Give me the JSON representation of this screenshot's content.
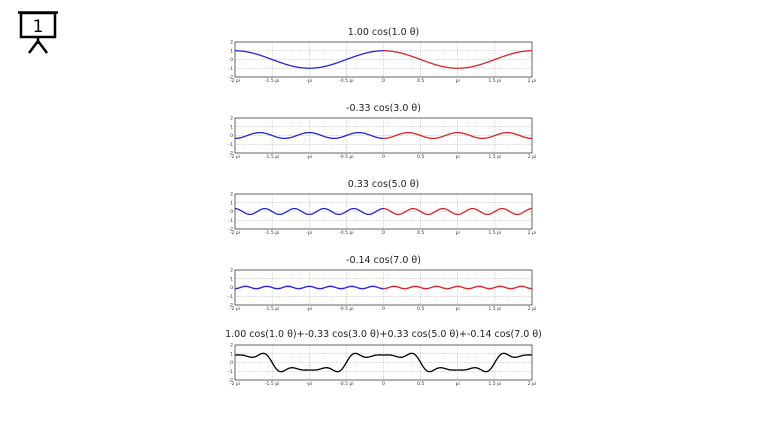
{
  "presentation": {
    "slide_number": "1"
  },
  "chart_data": [
    {
      "type": "line",
      "title": "1.00 cos(1.0 θ)",
      "amplitude": 1.0,
      "frequency": 1.0,
      "x_range": [
        -6.2832,
        6.2832
      ],
      "ylim": [
        -2,
        2
      ],
      "grid": true,
      "series": [
        {
          "color": "#2323dc",
          "x_range": [
            -6.2832,
            0
          ]
        },
        {
          "color": "#dc2323",
          "x_range": [
            0,
            6.2832
          ]
        }
      ],
      "x_ticks": [
        "-2 pi",
        "-1.5 pi",
        "-pi",
        "-0.5 pi",
        "0",
        "0.5",
        "pi",
        "1.5 pi",
        "2 pi"
      ],
      "y_ticks": [
        "2",
        "1",
        "0",
        "-1",
        "-2"
      ]
    },
    {
      "type": "line",
      "title": "-0.33 cos(3.0 θ)",
      "amplitude": -0.33,
      "frequency": 3.0,
      "x_range": [
        -6.2832,
        6.2832
      ],
      "ylim": [
        -2,
        2
      ],
      "grid": true,
      "series": [
        {
          "color": "#2323dc",
          "x_range": [
            -6.2832,
            0
          ]
        },
        {
          "color": "#dc2323",
          "x_range": [
            0,
            6.2832
          ]
        }
      ],
      "x_ticks": [
        "-2 pi",
        "-1.5 pi",
        "-pi",
        "-0.5 pi",
        "0",
        "0.5",
        "pi",
        "1.5 pi",
        "2 pi"
      ],
      "y_ticks": [
        "2",
        "1",
        "0",
        "-1",
        "-2"
      ]
    },
    {
      "type": "line",
      "title": "0.33 cos(5.0 θ)",
      "amplitude": 0.33,
      "frequency": 5.0,
      "x_range": [
        -6.2832,
        6.2832
      ],
      "ylim": [
        -2,
        2
      ],
      "grid": true,
      "series": [
        {
          "color": "#2323dc",
          "x_range": [
            -6.2832,
            0
          ]
        },
        {
          "color": "#dc2323",
          "x_range": [
            0,
            6.2832
          ]
        }
      ],
      "x_ticks": [
        "-2 pi",
        "-1.5 pi",
        "-pi",
        "-0.5 pi",
        "0",
        "0.5",
        "pi",
        "1.5 pi",
        "2 pi"
      ],
      "y_ticks": [
        "2",
        "1",
        "0",
        "-1",
        "-2"
      ]
    },
    {
      "type": "line",
      "title": "-0.14 cos(7.0 θ)",
      "amplitude": -0.14,
      "frequency": 7.0,
      "x_range": [
        -6.2832,
        6.2832
      ],
      "ylim": [
        -2,
        2
      ],
      "grid": true,
      "series": [
        {
          "color": "#2323dc",
          "x_range": [
            -6.2832,
            0
          ]
        },
        {
          "color": "#dc2323",
          "x_range": [
            0,
            6.2832
          ]
        }
      ],
      "x_ticks": [
        "-2 pi",
        "-1.5 pi",
        "-pi",
        "-0.5 pi",
        "0",
        "0.5",
        "pi",
        "1.5 pi",
        "2 pi"
      ],
      "y_ticks": [
        "2",
        "1",
        "0",
        "-1",
        "-2"
      ]
    },
    {
      "type": "line",
      "title": "1.00 cos(1.0 θ)+-0.33 cos(3.0 θ)+0.33 cos(5.0 θ)+-0.14 cos(7.0 θ)",
      "terms": [
        {
          "amplitude": 1.0,
          "frequency": 1.0
        },
        {
          "amplitude": -0.33,
          "frequency": 3.0
        },
        {
          "amplitude": 0.33,
          "frequency": 5.0
        },
        {
          "amplitude": -0.14,
          "frequency": 7.0
        }
      ],
      "x_range": [
        -6.2832,
        6.2832
      ],
      "ylim": [
        -2,
        2
      ],
      "grid": true,
      "series": [
        {
          "color": "#000000",
          "x_range": [
            -6.2832,
            6.2832
          ]
        }
      ],
      "x_ticks": [
        "-2 pi",
        "-1.5 pi",
        "-pi",
        "-0.5 pi",
        "0",
        "0.5",
        "pi",
        "1.5 pi",
        "2 pi"
      ],
      "y_ticks": [
        "2",
        "1",
        "0",
        "-1",
        "-2"
      ]
    }
  ]
}
